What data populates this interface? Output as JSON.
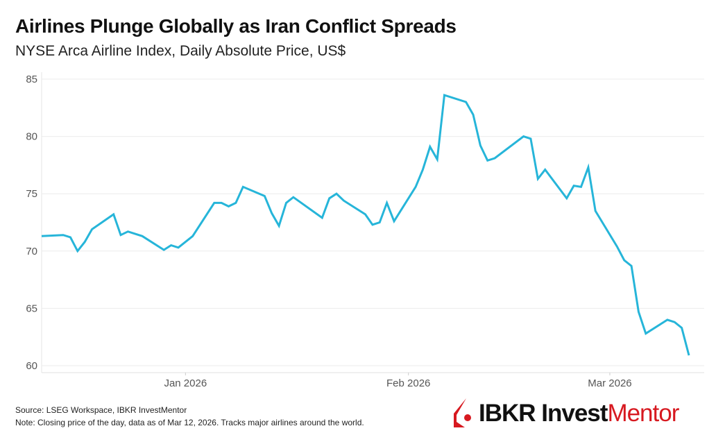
{
  "header": {
    "title": "Airlines Plunge Globally as Iran Conflict Spreads",
    "subtitle": "NYSE Arca Airline Index, Daily Absolute Price, US$"
  },
  "footer": {
    "source": "Source: LSEG Workspace, IBKR InvestMentor",
    "note": "Note: Closing price of the day, data as of Mar 12, 2026. Tracks major airlines around the world."
  },
  "logo": {
    "text_a": "IBKR Invest",
    "text_b": "Mentor",
    "brand_color": "#d71920"
  },
  "chart_data": {
    "type": "line",
    "title": "Airlines Plunge Globally as Iran Conflict Spreads",
    "subtitle": "NYSE Arca Airline Index, Daily Absolute Price, US$",
    "xlabel": "",
    "ylabel": "",
    "ylim": [
      60,
      85
    ],
    "xlim": [
      "2025-12-12",
      "2026-03-12"
    ],
    "grid": true,
    "line_color": "#26b5d9",
    "y_ticks": [
      60,
      65,
      70,
      75,
      80,
      85
    ],
    "x_ticks": [
      {
        "date": "2026-01-01",
        "label": "Jan 2026"
      },
      {
        "date": "2026-02-01",
        "label": "Feb 2026"
      },
      {
        "date": "2026-03-01",
        "label": "Mar 2026"
      }
    ],
    "series": [
      {
        "x": [
          "2025-12-12",
          "2025-12-15",
          "2025-12-16",
          "2025-12-17",
          "2025-12-18",
          "2025-12-19",
          "2025-12-22",
          "2025-12-23",
          "2025-12-24",
          "2025-12-26",
          "2025-12-29",
          "2025-12-30",
          "2025-12-31",
          "2026-01-02",
          "2026-01-05",
          "2026-01-06",
          "2026-01-07",
          "2026-01-08",
          "2026-01-09",
          "2026-01-12",
          "2026-01-13",
          "2026-01-14",
          "2026-01-15",
          "2026-01-16",
          "2026-01-20",
          "2026-01-21",
          "2026-01-22",
          "2026-01-23",
          "2026-01-26",
          "2026-01-27",
          "2026-01-28",
          "2026-01-29",
          "2026-01-30",
          "2026-02-02",
          "2026-02-03",
          "2026-02-04",
          "2026-02-05",
          "2026-02-06",
          "2026-02-09",
          "2026-02-10",
          "2026-02-11",
          "2026-02-12",
          "2026-02-13",
          "2026-02-17",
          "2026-02-18",
          "2026-02-19",
          "2026-02-20",
          "2026-02-23",
          "2026-02-24",
          "2026-02-25",
          "2026-02-26",
          "2026-02-27",
          "2026-03-02",
          "2026-03-03",
          "2026-03-04",
          "2026-03-05",
          "2026-03-06",
          "2026-03-09",
          "2026-03-10",
          "2026-03-11",
          "2026-03-12"
        ],
        "y": [
          71.3,
          71.4,
          71.2,
          70.0,
          70.8,
          71.9,
          73.2,
          71.4,
          71.7,
          71.3,
          70.1,
          70.5,
          70.3,
          71.3,
          74.2,
          74.2,
          73.9,
          74.2,
          75.6,
          74.8,
          73.3,
          72.2,
          74.2,
          74.7,
          72.9,
          74.6,
          75.0,
          74.4,
          73.2,
          72.3,
          72.5,
          74.2,
          72.6,
          75.6,
          77.1,
          79.1,
          78.0,
          83.6,
          83.0,
          81.9,
          79.2,
          77.9,
          78.1,
          80.0,
          79.8,
          76.3,
          77.1,
          74.6,
          75.7,
          75.6,
          77.3,
          73.5,
          70.4,
          69.2,
          68.7,
          64.7,
          62.8,
          64.0,
          63.8,
          63.3,
          60.9
        ]
      }
    ]
  }
}
